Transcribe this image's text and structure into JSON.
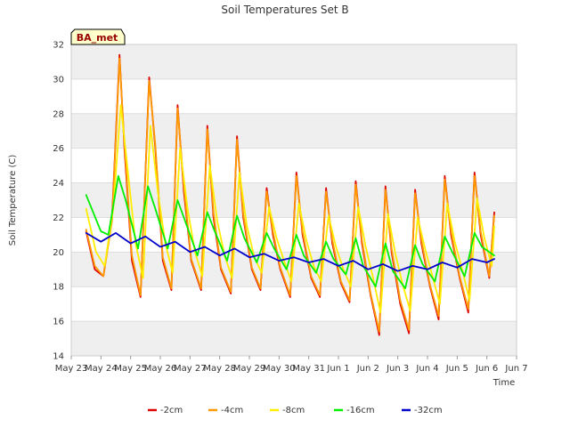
{
  "chart_data": {
    "type": "line",
    "title": "Soil Temperatures Set B",
    "xlabel": "Time",
    "ylabel": "Soil Temperature (C)",
    "site_label": "BA_met",
    "x_ticks": [
      "May 23",
      "May 24",
      "May 25",
      "May 26",
      "May 27",
      "May 28",
      "May 29",
      "May 30",
      "May 31",
      "Jun 1",
      "Jun 2",
      "Jun 3",
      "Jun 4",
      "Jun 5",
      "Jun 6",
      "Jun 7"
    ],
    "y_ticks": [
      14,
      16,
      18,
      20,
      22,
      24,
      26,
      28,
      30,
      32
    ],
    "ylim": [
      14,
      32
    ],
    "xlim": [
      "2023-05-23",
      "2023-06-07"
    ],
    "grid": true,
    "band_fill": "#efefef",
    "legend_position": "bottom",
    "series": [
      {
        "name": "-2cm",
        "color": "#dd0000",
        "x": [
          "05-23 12:00",
          "05-23 19:00",
          "05-24 02:00",
          "05-24 09:00",
          "05-24 15:00",
          "05-24 19:00",
          "05-25 01:00",
          "05-25 08:00",
          "05-25 15:00",
          "05-25 20:00",
          "05-26 02:00",
          "05-26 09:00",
          "05-26 14:00",
          "05-26 19:00",
          "05-27 01:00",
          "05-27 09:00",
          "05-27 14:00",
          "05-27 19:00",
          "05-28 01:00",
          "05-28 09:00",
          "05-28 14:00",
          "05-28 19:00",
          "05-29 02:00",
          "05-29 09:00",
          "05-29 14:00",
          "05-29 19:00",
          "05-30 01:00",
          "05-30 09:00",
          "05-30 14:00",
          "05-30 19:00",
          "05-31 02:00",
          "05-31 09:00",
          "05-31 14:00",
          "05-31 19:00",
          "06-01 02:00",
          "06-01 09:00",
          "06-01 14:00",
          "06-01 19:00",
          "06-02 02:00",
          "06-02 09:00",
          "06-02 14:00",
          "06-02 19:00",
          "06-03 02:00",
          "06-03 09:00",
          "06-03 14:00",
          "06-03 19:00",
          "06-04 02:00",
          "06-04 09:00",
          "06-04 14:00",
          "06-04 19:00",
          "06-05 02:00",
          "06-05 09:00",
          "06-05 14:00",
          "06-05 19:00",
          "06-06 02:00",
          "06-06 06:00"
        ],
        "values": [
          21.2,
          19.0,
          18.6,
          22.0,
          31.4,
          26.0,
          19.5,
          17.4,
          30.1,
          26.0,
          19.5,
          17.8,
          28.5,
          23.5,
          19.5,
          17.8,
          27.3,
          22.0,
          19.0,
          17.6,
          26.7,
          22.0,
          19.0,
          17.8,
          23.7,
          21.0,
          19.0,
          17.4,
          24.6,
          21.0,
          18.5,
          17.4,
          23.7,
          20.5,
          18.2,
          17.1,
          24.1,
          20.5,
          17.5,
          15.2,
          23.8,
          20.0,
          17.0,
          15.3,
          23.6,
          20.5,
          18.0,
          16.1,
          24.4,
          21.0,
          18.5,
          16.5,
          24.6,
          21.0,
          18.5,
          22.3
        ]
      },
      {
        "name": "-4cm",
        "color": "#ff9900",
        "x": [
          "05-23 12:00",
          "05-23 19:00",
          "05-24 02:00",
          "05-24 09:00",
          "05-24 15:00",
          "05-24 19:00",
          "05-25 01:00",
          "05-25 08:00",
          "05-25 15:00",
          "05-25 20:00",
          "05-26 02:00",
          "05-26 09:00",
          "05-26 14:00",
          "05-26 19:00",
          "05-27 01:00",
          "05-27 09:00",
          "05-27 14:00",
          "05-27 19:00",
          "05-28 01:00",
          "05-28 09:00",
          "05-28 14:00",
          "05-28 19:00",
          "05-29 02:00",
          "05-29 09:00",
          "05-29 14:00",
          "05-29 19:00",
          "05-30 01:00",
          "05-30 09:00",
          "05-30 14:00",
          "05-30 19:00",
          "05-31 02:00",
          "05-31 09:00",
          "05-31 14:00",
          "05-31 19:00",
          "06-01 02:00",
          "06-01 09:00",
          "06-01 14:00",
          "06-01 19:00",
          "06-02 02:00",
          "06-02 09:00",
          "06-02 14:00",
          "06-02 19:00",
          "06-03 02:00",
          "06-03 09:00",
          "06-03 14:00",
          "06-03 19:00",
          "06-04 02:00",
          "06-04 09:00",
          "06-04 14:00",
          "06-04 19:00",
          "06-05 02:00",
          "06-05 09:00",
          "06-05 14:00",
          "06-05 19:00",
          "06-06 02:00",
          "06-06 06:00"
        ],
        "values": [
          21.3,
          19.2,
          18.6,
          21.8,
          31.2,
          26.3,
          19.8,
          17.5,
          29.9,
          26.2,
          19.7,
          17.9,
          28.3,
          23.8,
          19.6,
          17.9,
          27.1,
          22.3,
          19.1,
          17.7,
          26.5,
          22.2,
          19.1,
          17.9,
          23.5,
          21.2,
          19.1,
          17.5,
          24.4,
          21.2,
          18.6,
          17.5,
          23.5,
          20.7,
          18.3,
          17.2,
          23.9,
          20.7,
          17.6,
          15.4,
          23.6,
          20.2,
          17.2,
          15.5,
          23.4,
          20.7,
          18.1,
          16.3,
          24.2,
          21.2,
          18.6,
          16.7,
          24.4,
          21.2,
          18.6,
          22.1
        ]
      },
      {
        "name": "-8cm",
        "color": "#ffee00",
        "x": [
          "05-23 12:00",
          "05-23 20:00",
          "05-24 03:00",
          "05-24 10:00",
          "05-24 16:00",
          "05-24 22:00",
          "05-25 04:00",
          "05-25 10:00",
          "05-25 16:00",
          "05-25 22:00",
          "05-26 04:00",
          "05-26 10:00",
          "05-26 16:00",
          "05-26 22:00",
          "05-27 04:00",
          "05-27 10:00",
          "05-27 16:00",
          "05-27 22:00",
          "05-28 04:00",
          "05-28 10:00",
          "05-28 16:00",
          "05-28 22:00",
          "05-29 04:00",
          "05-29 10:00",
          "05-29 16:00",
          "05-29 22:00",
          "05-30 04:00",
          "05-30 10:00",
          "05-30 16:00",
          "05-30 22:00",
          "05-31 04:00",
          "05-31 10:00",
          "05-31 16:00",
          "05-31 22:00",
          "06-01 04:00",
          "06-01 10:00",
          "06-01 16:00",
          "06-01 22:00",
          "06-02 04:00",
          "06-02 10:00",
          "06-02 16:00",
          "06-02 22:00",
          "06-03 04:00",
          "06-03 10:00",
          "06-03 16:00",
          "06-03 22:00",
          "06-04 04:00",
          "06-04 10:00",
          "06-04 16:00",
          "06-04 22:00",
          "06-05 04:00",
          "06-05 10:00",
          "06-05 16:00",
          "06-05 22:00",
          "06-06 04:00",
          "06-06 06:00"
        ],
        "values": [
          22.5,
          20.0,
          19.2,
          22.5,
          28.5,
          24.5,
          20.5,
          18.5,
          27.3,
          23.5,
          20.5,
          18.8,
          26.0,
          22.5,
          20.0,
          18.6,
          25.0,
          21.8,
          19.8,
          18.5,
          24.6,
          21.5,
          19.7,
          18.8,
          22.6,
          20.8,
          19.5,
          18.3,
          22.8,
          20.7,
          19.2,
          18.3,
          22.1,
          20.3,
          19.0,
          18.0,
          22.6,
          20.3,
          18.5,
          16.5,
          22.2,
          19.9,
          18.1,
          16.6,
          22.0,
          20.2,
          18.6,
          17.0,
          22.8,
          20.6,
          19.0,
          17.2,
          23.1,
          20.8,
          19.2,
          21.5
        ]
      },
      {
        "name": "-16cm",
        "color": "#00ee00",
        "x": [
          "05-23 12:00",
          "05-24 00:00",
          "05-24 06:00",
          "05-24 14:00",
          "05-24 20:00",
          "05-25 06:00",
          "05-25 14:00",
          "05-25 20:00",
          "05-26 06:00",
          "05-26 14:00",
          "05-26 20:00",
          "05-27 06:00",
          "05-27 14:00",
          "05-27 20:00",
          "05-28 06:00",
          "05-28 14:00",
          "05-28 20:00",
          "05-29 06:00",
          "05-29 14:00",
          "05-29 20:00",
          "05-30 06:00",
          "05-30 14:00",
          "05-30 20:00",
          "05-31 06:00",
          "05-31 14:00",
          "05-31 20:00",
          "06-01 06:00",
          "06-01 14:00",
          "06-01 20:00",
          "06-02 06:00",
          "06-02 14:00",
          "06-02 20:00",
          "06-03 06:00",
          "06-03 14:00",
          "06-03 20:00",
          "06-04 06:00",
          "06-04 14:00",
          "06-04 20:00",
          "06-05 06:00",
          "06-05 14:00",
          "06-05 20:00",
          "06-06 06:00"
        ],
        "values": [
          23.3,
          21.2,
          21.0,
          24.4,
          23.0,
          20.2,
          23.8,
          22.5,
          20.2,
          23.0,
          21.8,
          19.8,
          22.3,
          21.2,
          19.5,
          22.1,
          20.8,
          19.4,
          21.1,
          20.2,
          19.0,
          21.0,
          19.8,
          18.8,
          20.6,
          19.6,
          18.7,
          20.8,
          19.2,
          18.0,
          20.5,
          18.9,
          17.9,
          20.4,
          19.3,
          18.3,
          20.9,
          20.0,
          18.6,
          21.1,
          20.3,
          19.8
        ]
      },
      {
        "name": "-32cm",
        "color": "#0000cc",
        "x": [
          "05-23 12:00",
          "05-24 00:00",
          "05-24 12:00",
          "05-25 00:00",
          "05-25 12:00",
          "05-26 00:00",
          "05-26 12:00",
          "05-27 00:00",
          "05-27 12:00",
          "05-28 00:00",
          "05-28 12:00",
          "05-29 00:00",
          "05-29 12:00",
          "05-30 00:00",
          "05-30 12:00",
          "05-31 00:00",
          "05-31 12:00",
          "06-01 00:00",
          "06-01 12:00",
          "06-02 00:00",
          "06-02 12:00",
          "06-03 00:00",
          "06-03 12:00",
          "06-04 00:00",
          "06-04 12:00",
          "06-05 00:00",
          "06-05 12:00",
          "06-06 00:00",
          "06-06 06:00"
        ],
        "values": [
          21.1,
          20.6,
          21.1,
          20.5,
          20.9,
          20.3,
          20.6,
          20.0,
          20.3,
          19.8,
          20.2,
          19.7,
          19.9,
          19.5,
          19.7,
          19.4,
          19.6,
          19.2,
          19.5,
          19.0,
          19.3,
          18.9,
          19.2,
          19.0,
          19.4,
          19.1,
          19.6,
          19.4,
          19.6
        ]
      }
    ]
  }
}
